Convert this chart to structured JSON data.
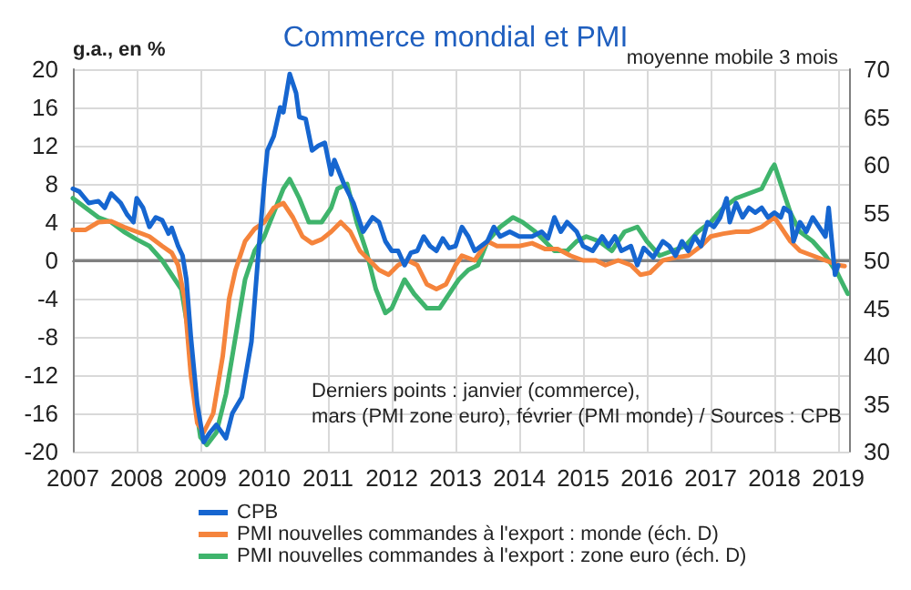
{
  "chart_data": {
    "type": "line",
    "title": "Commerce mondial et PMI",
    "ylabel": "g.a., en %",
    "annotations": [
      "moyenne mobile 3 mois",
      "Derniers points : janvier (commerce),\nmars (PMI zone euro), février (PMI monde) / Sources : CPB"
    ],
    "xlim": [
      2007,
      2019.17
    ],
    "xticks": [
      2007,
      2008,
      2009,
      2010,
      2011,
      2012,
      2013,
      2014,
      2015,
      2016,
      2017,
      2018,
      2019
    ],
    "ylim": [
      -20,
      20
    ],
    "yticks": [
      -20,
      -16,
      -12,
      -8,
      -4,
      0,
      4,
      8,
      12,
      16,
      20
    ],
    "y2lim": [
      30,
      70
    ],
    "y2ticks": [
      30,
      35,
      40,
      45,
      50,
      55,
      60,
      65,
      70
    ],
    "grid": true,
    "legend": "bottom",
    "marker": "none",
    "line_style": "solid",
    "ref_lines": [
      {
        "axis": "y",
        "value": 0,
        "color": "#808080"
      }
    ],
    "series": [
      {
        "name": "CPB",
        "color": "#1666d0",
        "x": [
          2007.0,
          2007.1,
          2007.25,
          2007.4,
          2007.5,
          2007.6,
          2007.75,
          2007.85,
          2007.95,
          2008.0,
          2008.1,
          2008.2,
          2008.3,
          2008.4,
          2008.5,
          2008.55,
          2008.65,
          2008.72,
          2008.78,
          2008.85,
          2008.95,
          2009.05,
          2009.15,
          2009.25,
          2009.4,
          2009.5,
          2009.65,
          2009.8,
          2009.9,
          2010.0,
          2010.05,
          2010.15,
          2010.25,
          2010.3,
          2010.4,
          2010.5,
          2010.55,
          2010.65,
          2010.75,
          2010.85,
          2010.95,
          2011.05,
          2011.1,
          2011.25,
          2011.4,
          2011.55,
          2011.7,
          2011.8,
          2011.9,
          2012.0,
          2012.1,
          2012.2,
          2012.3,
          2012.4,
          2012.5,
          2012.6,
          2012.7,
          2012.8,
          2012.9,
          2013.0,
          2013.1,
          2013.2,
          2013.3,
          2013.5,
          2013.6,
          2013.7,
          2013.85,
          2014.0,
          2014.2,
          2014.35,
          2014.45,
          2014.55,
          2014.65,
          2014.75,
          2014.9,
          2015.0,
          2015.15,
          2015.3,
          2015.4,
          2015.5,
          2015.6,
          2015.75,
          2015.85,
          2015.95,
          2016.1,
          2016.25,
          2016.35,
          2016.45,
          2016.55,
          2016.65,
          2016.75,
          2016.85,
          2016.95,
          2017.05,
          2017.15,
          2017.25,
          2017.3,
          2017.4,
          2017.5,
          2017.6,
          2017.7,
          2017.8,
          2017.9,
          2018.0,
          2018.1,
          2018.15,
          2018.25,
          2018.3,
          2018.4,
          2018.5,
          2018.6,
          2018.7,
          2018.8,
          2018.85,
          2018.9,
          2018.95,
          2019.0
        ],
        "values": [
          7.5,
          7.2,
          6,
          6.2,
          5.5,
          7,
          6,
          4.8,
          4,
          6.5,
          5.5,
          3.5,
          4.5,
          4.2,
          2.8,
          3.4,
          1.5,
          0.5,
          -2,
          -8,
          -15,
          -19,
          -18,
          -17.2,
          -18.6,
          -16,
          -14.3,
          -8.5,
          0,
          8,
          11.5,
          13,
          16,
          15.5,
          19.5,
          17.5,
          15,
          14.8,
          11.5,
          12,
          12.3,
          9,
          10.5,
          8,
          6,
          3,
          4.5,
          4,
          2,
          1,
          1,
          -0.5,
          0.8,
          1,
          2.5,
          1.5,
          1,
          2.3,
          1.3,
          1.5,
          3.5,
          2.5,
          1,
          2,
          3.5,
          2.5,
          3,
          2.5,
          2.5,
          3,
          2.3,
          4.5,
          3,
          4,
          3,
          1.5,
          1,
          2.5,
          1.5,
          2.5,
          1,
          1.5,
          -0.5,
          1.3,
          0.3,
          2,
          1.5,
          0.5,
          2,
          1,
          2.5,
          1.5,
          4,
          3.5,
          4.5,
          6.5,
          4,
          6,
          4.5,
          5.5,
          5,
          5.5,
          4.5,
          5,
          4.5,
          5.5,
          5,
          2,
          4,
          3,
          4.5,
          3.5,
          2.5,
          5.5,
          2,
          -1.5,
          -0.5
        ]
      },
      {
        "name": "PMI nouvelles commandes à l'export : monde (éch. D)",
        "color": "#f5843c",
        "axis": "y2",
        "x": [
          2007.0,
          2007.2,
          2007.4,
          2007.6,
          2007.8,
          2008.0,
          2008.2,
          2008.4,
          2008.55,
          2008.65,
          2008.75,
          2008.85,
          2008.95,
          2009.05,
          2009.2,
          2009.35,
          2009.45,
          2009.55,
          2009.7,
          2009.85,
          2010.0,
          2010.15,
          2010.3,
          2010.45,
          2010.6,
          2010.75,
          2010.9,
          2011.05,
          2011.2,
          2011.35,
          2011.5,
          2011.65,
          2011.8,
          2011.95,
          2012.1,
          2012.25,
          2012.4,
          2012.55,
          2012.7,
          2012.85,
          2013.0,
          2013.1,
          2013.3,
          2013.5,
          2013.65,
          2013.85,
          2014.0,
          2014.2,
          2014.4,
          2014.6,
          2014.8,
          2015.0,
          2015.2,
          2015.35,
          2015.55,
          2015.75,
          2015.9,
          2016.05,
          2016.25,
          2016.45,
          2016.65,
          2016.85,
          2017.0,
          2017.2,
          2017.4,
          2017.6,
          2017.8,
          2018.0,
          2018.1,
          2018.25,
          2018.4,
          2018.6,
          2018.8,
          2019.0,
          2019.1
        ],
        "values": [
          53.2,
          53.2,
          54,
          54.1,
          53.5,
          53,
          52.5,
          51.5,
          50.8,
          49.5,
          46,
          38,
          33,
          32,
          34,
          40,
          46,
          49,
          52,
          53.3,
          54,
          55.5,
          56,
          54.5,
          52.5,
          51.8,
          52.2,
          53,
          54,
          53,
          51,
          50,
          49,
          48.5,
          49.5,
          50,
          49.5,
          47.5,
          47,
          47.5,
          49.5,
          50.5,
          50,
          52,
          51.5,
          51.5,
          51.5,
          51.8,
          51.2,
          51.2,
          50.5,
          50,
          50,
          49.5,
          50,
          49.5,
          48.5,
          48.7,
          50,
          50.3,
          50.5,
          51.5,
          52.5,
          52.8,
          53,
          53,
          53.5,
          54.5,
          53.5,
          52,
          51,
          50.5,
          50,
          49.5,
          49.4
        ]
      },
      {
        "name": "PMI nouvelles commandes à l'export : zone euro (éch. D)",
        "color": "#3fb46c",
        "axis": "y2",
        "x": [
          2007.0,
          2007.2,
          2007.4,
          2007.6,
          2007.8,
          2008.0,
          2008.2,
          2008.4,
          2008.55,
          2008.7,
          2008.8,
          2008.9,
          2009.0,
          2009.1,
          2009.25,
          2009.4,
          2009.55,
          2009.7,
          2009.85,
          2010.0,
          2010.15,
          2010.3,
          2010.4,
          2010.55,
          2010.7,
          2010.9,
          2011.05,
          2011.15,
          2011.3,
          2011.45,
          2011.6,
          2011.75,
          2011.9,
          2012.0,
          2012.2,
          2012.35,
          2012.55,
          2012.75,
          2012.95,
          2013.05,
          2013.2,
          2013.35,
          2013.5,
          2013.7,
          2013.9,
          2014.05,
          2014.25,
          2014.4,
          2014.55,
          2014.75,
          2014.9,
          2015.05,
          2015.25,
          2015.45,
          2015.65,
          2015.85,
          2016.0,
          2016.2,
          2016.4,
          2016.6,
          2016.8,
          2017.0,
          2017.2,
          2017.4,
          2017.6,
          2017.8,
          2017.95,
          2018.0,
          2018.1,
          2018.25,
          2018.4,
          2018.6,
          2018.8,
          2019.0,
          2019.15
        ],
        "values": [
          56.5,
          55.5,
          54.5,
          54,
          53,
          52.2,
          51.5,
          50,
          48.5,
          47,
          43,
          36,
          31.5,
          30.7,
          32,
          36,
          42,
          48,
          51,
          52.5,
          55,
          57.5,
          58.5,
          56.5,
          54,
          54,
          55.5,
          57.5,
          58,
          54,
          51,
          47,
          44.5,
          45,
          48,
          46.5,
          45,
          45,
          47,
          48,
          49,
          49.5,
          52,
          53.5,
          54.5,
          54,
          53,
          52,
          51,
          51,
          52,
          52.5,
          52,
          51,
          53,
          53.5,
          52,
          50.5,
          51,
          51.5,
          53,
          54,
          55.5,
          56.5,
          57,
          57.5,
          59.5,
          60,
          58,
          55,
          53,
          52,
          50.5,
          48.5,
          46.5
        ]
      }
    ]
  }
}
